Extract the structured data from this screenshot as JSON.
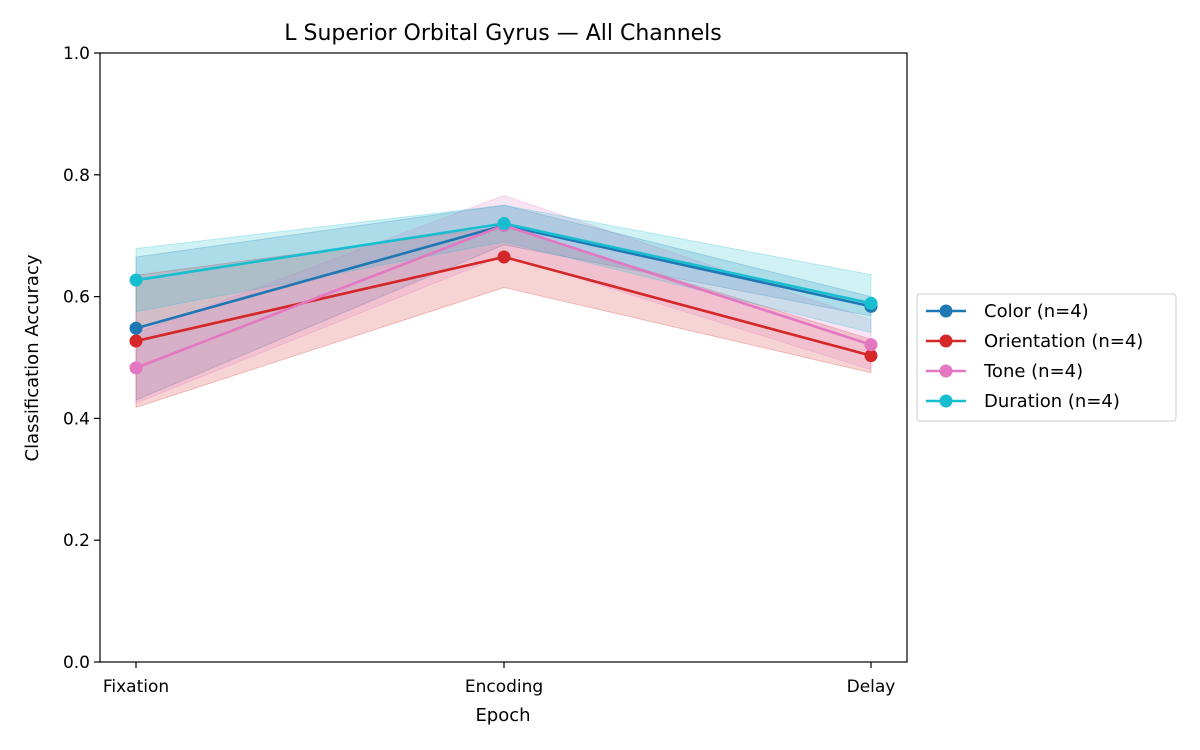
{
  "chart_data": {
    "type": "line",
    "title": "L Superior Orbital Gyrus — All Channels",
    "xlabel": "Epoch",
    "ylabel": "Classification Accuracy",
    "categories": [
      "Fixation",
      "Encoding",
      "Delay"
    ],
    "ylim": [
      0.0,
      1.0
    ],
    "yticks": [
      "0.0",
      "0.2",
      "0.4",
      "0.6",
      "0.8",
      "1.0"
    ],
    "grid": false,
    "legend_position": "right-outside",
    "series": [
      {
        "name": "Color (n=4)",
        "color": "#1f77b4",
        "values": [
          0.548,
          0.717,
          0.584
        ],
        "lower": [
          0.43,
          0.685,
          0.568
        ],
        "upper": [
          0.665,
          0.75,
          0.6
        ]
      },
      {
        "name": "Orientation (n=4)",
        "color": "#d62728",
        "values": [
          0.527,
          0.665,
          0.503
        ],
        "lower": [
          0.418,
          0.615,
          0.475
        ],
        "upper": [
          0.635,
          0.715,
          0.53
        ]
      },
      {
        "name": "Tone (n=4)",
        "color": "#e377c2",
        "values": [
          0.483,
          0.717,
          0.521
        ],
        "lower": [
          0.425,
          0.668,
          0.48
        ],
        "upper": [
          0.54,
          0.766,
          0.562
        ]
      },
      {
        "name": "Duration (n=4)",
        "color": "#17becf",
        "values": [
          0.627,
          0.72,
          0.589
        ],
        "lower": [
          0.575,
          0.69,
          0.541
        ],
        "upper": [
          0.679,
          0.75,
          0.636
        ]
      }
    ]
  }
}
